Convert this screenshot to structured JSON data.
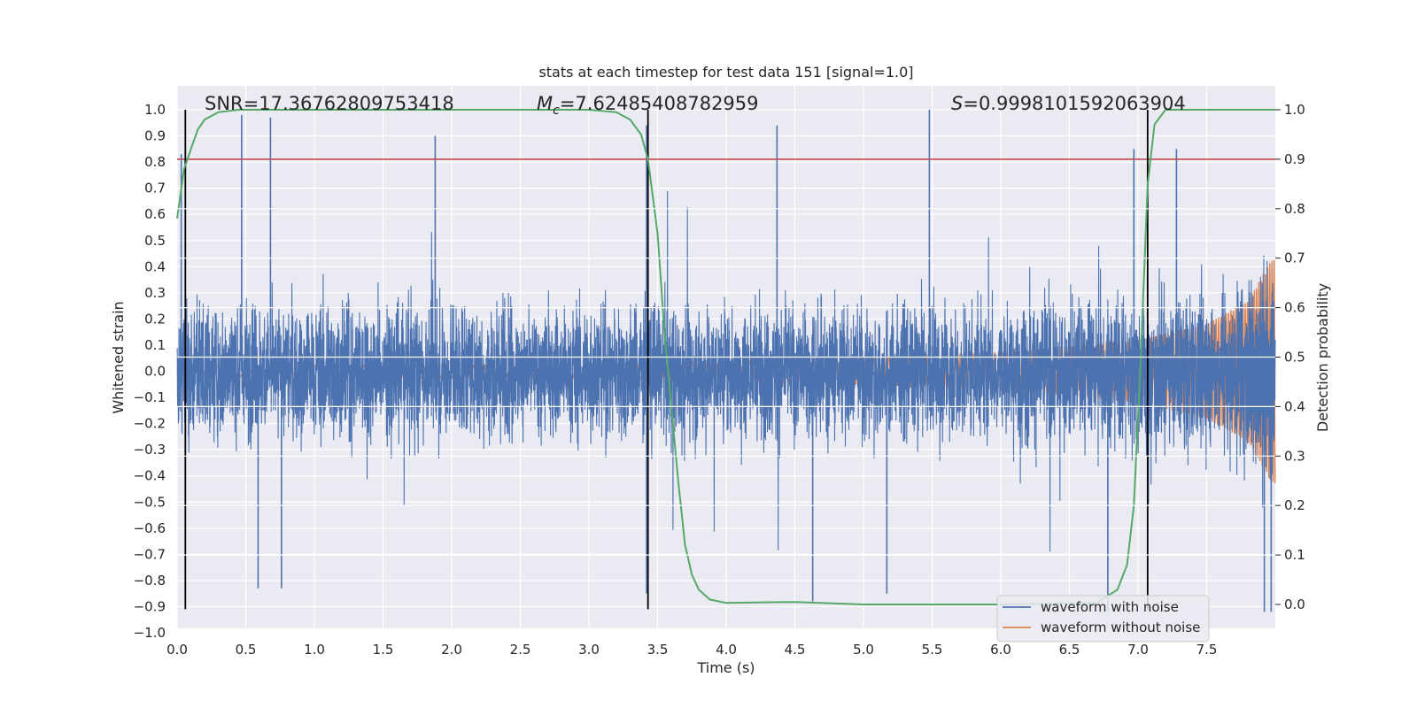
{
  "chart_data": {
    "type": "line",
    "title": "stats at each timestep for test data 151 [signal=1.0]",
    "xlabel": "Time (s)",
    "ylabel_left": "Whitened strain",
    "ylabel_right": "Detection probability",
    "xlim": [
      0.0,
      8.0
    ],
    "ylim_left": [
      -1.0,
      1.1
    ],
    "ylim_right": [
      -0.045,
      1.045
    ],
    "x_ticks": [
      "0.0",
      "0.5",
      "1.0",
      "1.5",
      "2.0",
      "2.5",
      "3.0",
      "3.5",
      "4.0",
      "4.5",
      "5.0",
      "5.5",
      "6.0",
      "6.5",
      "7.0",
      "7.5"
    ],
    "y_ticks_left": [
      "1.0",
      "0.9",
      "0.8",
      "0.7",
      "0.6",
      "0.5",
      "0.4",
      "0.3",
      "0.2",
      "0.1",
      "0.0",
      "−0.1",
      "−0.2",
      "−0.3",
      "−0.4",
      "−0.5",
      "−0.6",
      "−0.7",
      "−0.8",
      "−0.9",
      "−1.0"
    ],
    "y_ticks_right": [
      "1.0",
      "0.9",
      "0.8",
      "0.7",
      "0.6",
      "0.5",
      "0.4",
      "0.3",
      "0.2",
      "0.1",
      "0.0"
    ],
    "grid": true,
    "legend_position": "lower-right",
    "annotations": {
      "snr": "SNR=17.36762809753418",
      "mc_symbol": "M",
      "mc_sub": "c",
      "mc_value": "=7.62485408782959",
      "s_symbol": "S",
      "s_value": "=0.9998101592063904"
    },
    "threshold": {
      "axis": "right",
      "value": 0.9,
      "color": "#c44e52"
    },
    "vertical_lines": [
      0.06,
      3.43,
      7.07
    ],
    "series": [
      {
        "name": "waveform with noise",
        "color": "#4c72b0",
        "axis": "left",
        "note": "dense noisy strain, typical envelope about ±0.35 with spikes to ±1.0",
        "peaks": [
          {
            "x": 0.47,
            "y": 0.98
          },
          {
            "x": 0.68,
            "y": 0.97
          },
          {
            "x": 1.88,
            "y": 0.9
          },
          {
            "x": 4.37,
            "y": 0.94
          },
          {
            "x": 5.48,
            "y": 1.0
          },
          {
            "x": 3.42,
            "y": 0.94
          },
          {
            "x": 0.03,
            "y": 0.83
          },
          {
            "x": 7.28,
            "y": 0.85
          },
          {
            "x": 6.97,
            "y": 0.85
          },
          {
            "x": 0.59,
            "y": -0.83
          },
          {
            "x": 0.76,
            "y": -0.83
          },
          {
            "x": 3.42,
            "y": -0.85
          },
          {
            "x": 4.63,
            "y": -0.88
          },
          {
            "x": 5.17,
            "y": -0.85
          },
          {
            "x": 7.92,
            "y": -0.92
          },
          {
            "x": 7.97,
            "y": -0.92
          },
          {
            "x": 6.78,
            "y": -0.92
          }
        ]
      },
      {
        "name": "waveform without noise",
        "color": "#dd8452",
        "axis": "left",
        "note": "chirp: amplitude grows from about 0.02 at t=0 to about 0.45 at t=8",
        "amplitude": [
          {
            "x": 0.0,
            "y": 0.02
          },
          {
            "x": 3.4,
            "y": 0.03
          },
          {
            "x": 5.0,
            "y": 0.05
          },
          {
            "x": 6.0,
            "y": 0.07
          },
          {
            "x": 7.0,
            "y": 0.12
          },
          {
            "x": 7.5,
            "y": 0.18
          },
          {
            "x": 7.8,
            "y": 0.27
          },
          {
            "x": 8.0,
            "y": 0.45
          }
        ]
      },
      {
        "name": "detection probability",
        "color": "#55a868",
        "axis": "right",
        "points": [
          [
            0.0,
            0.78
          ],
          [
            0.05,
            0.88
          ],
          [
            0.1,
            0.92
          ],
          [
            0.15,
            0.96
          ],
          [
            0.2,
            0.98
          ],
          [
            0.3,
            0.995
          ],
          [
            0.45,
            1.0
          ],
          [
            1.0,
            1.0
          ],
          [
            2.0,
            1.0
          ],
          [
            3.0,
            1.0
          ],
          [
            3.2,
            0.995
          ],
          [
            3.3,
            0.98
          ],
          [
            3.38,
            0.95
          ],
          [
            3.43,
            0.9
          ],
          [
            3.5,
            0.75
          ],
          [
            3.55,
            0.55
          ],
          [
            3.6,
            0.4
          ],
          [
            3.65,
            0.25
          ],
          [
            3.7,
            0.12
          ],
          [
            3.75,
            0.06
          ],
          [
            3.8,
            0.03
          ],
          [
            3.88,
            0.01
          ],
          [
            4.0,
            0.003
          ],
          [
            4.5,
            0.005
          ],
          [
            5.0,
            0.0
          ],
          [
            6.0,
            0.0
          ],
          [
            6.7,
            0.003
          ],
          [
            6.85,
            0.03
          ],
          [
            6.92,
            0.08
          ],
          [
            6.97,
            0.2
          ],
          [
            7.02,
            0.5
          ],
          [
            7.07,
            0.85
          ],
          [
            7.12,
            0.97
          ],
          [
            7.2,
            1.0
          ],
          [
            8.0,
            1.0
          ]
        ]
      }
    ]
  },
  "legend": {
    "with_noise": "waveform with noise",
    "without_noise": "waveform without noise"
  }
}
